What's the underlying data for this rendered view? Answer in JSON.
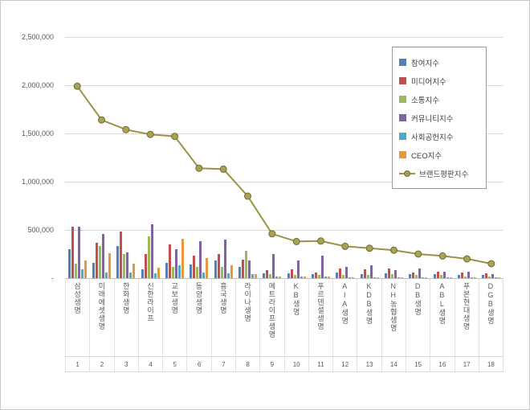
{
  "chart_data": {
    "type": "bar",
    "subtype": "grouped bars with overlaid brand-reputation line",
    "title": "",
    "xlabel": "",
    "ylabel": "",
    "ylim": [
      0,
      2500000
    ],
    "grid": true,
    "legend_position": "top-right-inside",
    "y_ticks_top_down": [
      "2,500,000",
      "2,000,000",
      "1,500,000",
      "1,000,000",
      "500,000",
      "-"
    ],
    "categories": [
      "삼성생명",
      "미래에셋생명",
      "한화생명",
      "신한라이프",
      "교보생명",
      "동양생명",
      "흥국생명",
      "라이나생명",
      "메트라이프생명",
      "KB생명",
      "푸르덴셜생명",
      "AIA생명",
      "KDB생명",
      "NH농협생명",
      "DB생명",
      "ABL생명",
      "푸본현대생명",
      "DGB생명"
    ],
    "index_labels": [
      "1",
      "2",
      "3",
      "4",
      "5",
      "6",
      "7",
      "8",
      "9",
      "10",
      "11",
      "12",
      "13",
      "14",
      "15",
      "16",
      "17",
      "18"
    ],
    "series": [
      {
        "name": "참여지수",
        "kind": "bar",
        "color": "#4f81bd",
        "values": [
          300000,
          160000,
          330000,
          90000,
          160000,
          140000,
          180000,
          120000,
          50000,
          50000,
          40000,
          60000,
          40000,
          50000,
          40000,
          40000,
          30000,
          30000
        ]
      },
      {
        "name": "미디어지수",
        "kind": "bar",
        "color": "#c0504d",
        "values": [
          535000,
          370000,
          480000,
          250000,
          350000,
          230000,
          250000,
          190000,
          80000,
          90000,
          60000,
          100000,
          90000,
          100000,
          60000,
          70000,
          60000,
          50000
        ]
      },
      {
        "name": "소통지수",
        "kind": "bar",
        "color": "#9bbb59",
        "values": [
          150000,
          330000,
          250000,
          430000,
          120000,
          120000,
          120000,
          280000,
          40000,
          30000,
          30000,
          30000,
          30000,
          40000,
          30000,
          30000,
          20000,
          20000
        ]
      },
      {
        "name": "커뮤니티지수",
        "kind": "bar",
        "color": "#8064a2",
        "values": [
          535000,
          460000,
          270000,
          560000,
          300000,
          380000,
          400000,
          180000,
          250000,
          180000,
          230000,
          120000,
          130000,
          80000,
          100000,
          70000,
          70000,
          40000
        ]
      },
      {
        "name": "사회공헌지수",
        "kind": "bar",
        "color": "#4bacc6",
        "values": [
          90000,
          60000,
          60000,
          50000,
          130000,
          60000,
          50000,
          40000,
          20000,
          15000,
          15000,
          10000,
          10000,
          10000,
          10000,
          10000,
          10000,
          5000
        ]
      },
      {
        "name": "CEO지수",
        "kind": "bar",
        "color": "#e8973c",
        "values": [
          180000,
          260000,
          150000,
          110000,
          410000,
          210000,
          130000,
          40000,
          20000,
          15000,
          15000,
          10000,
          10000,
          10000,
          10000,
          10000,
          10000,
          5000
        ]
      },
      {
        "name": "브랜드평판지수",
        "kind": "line",
        "color": "#9a9344",
        "marker_fill": "#a8a253",
        "marker_stroke": "#6f6a35",
        "values": [
          1990000,
          1640000,
          1540000,
          1490000,
          1470000,
          1140000,
          1130000,
          850000,
          460000,
          380000,
          385000,
          330000,
          310000,
          290000,
          250000,
          230000,
          200000,
          150000
        ]
      }
    ]
  }
}
